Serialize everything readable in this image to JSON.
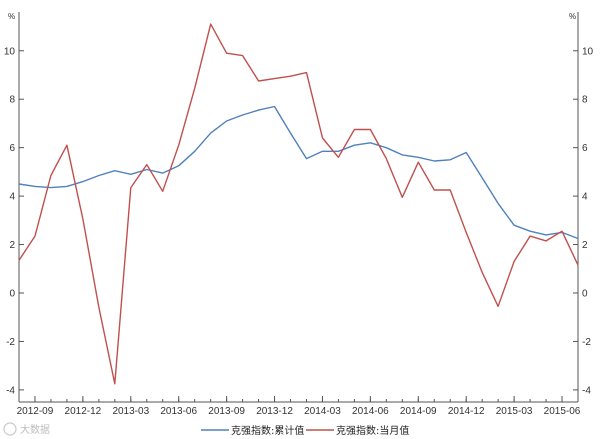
{
  "chart_data": {
    "type": "line",
    "title": "",
    "xlabel": "",
    "ylabel": "",
    "unit_left": "%",
    "unit_right": "%",
    "ylim": [
      -4.5,
      11.6
    ],
    "yticks": [
      -4,
      -2,
      0,
      2,
      4,
      6,
      8,
      10
    ],
    "x_tick_labels": [
      "2012-09",
      "2012-12",
      "2013-03",
      "2013-06",
      "2013-09",
      "2013-12",
      "2014-03",
      "2014-06",
      "2014-09",
      "2014-12",
      "2015-03",
      "2015-06"
    ],
    "x": [
      "2012-08",
      "2012-09",
      "2012-10",
      "2012-11",
      "2012-12",
      "2013-01",
      "2013-02",
      "2013-03",
      "2013-04",
      "2013-05",
      "2013-06",
      "2013-07",
      "2013-08",
      "2013-09",
      "2013-10",
      "2013-11",
      "2013-12",
      "2014-01",
      "2014-02",
      "2014-03",
      "2014-04",
      "2014-05",
      "2014-06",
      "2014-07",
      "2014-08",
      "2014-09",
      "2014-10",
      "2014-11",
      "2014-12",
      "2015-01",
      "2015-02",
      "2015-03",
      "2015-04",
      "2015-05",
      "2015-06",
      "2015-07"
    ],
    "series": [
      {
        "name": "克强指数:累计值",
        "color": "#4f81bd",
        "values": [
          4.5,
          4.4,
          4.35,
          4.4,
          4.6,
          4.85,
          5.05,
          4.9,
          5.1,
          4.95,
          5.25,
          5.85,
          6.6,
          7.1,
          7.35,
          7.55,
          7.7,
          6.6,
          5.55,
          5.85,
          5.85,
          6.1,
          6.2,
          6.0,
          5.7,
          5.6,
          5.45,
          5.5,
          5.8,
          4.75,
          3.7,
          2.8,
          2.55,
          2.4,
          2.5,
          2.25
        ]
      },
      {
        "name": "克强指数:当月值",
        "color": "#c0504d",
        "values": [
          1.35,
          2.35,
          4.85,
          6.1,
          3.05,
          -0.6,
          -3.75,
          4.35,
          5.3,
          4.2,
          6.1,
          8.45,
          11.1,
          9.9,
          9.8,
          8.75,
          8.85,
          8.95,
          9.1,
          6.4,
          5.6,
          6.75,
          6.75,
          5.55,
          3.95,
          5.4,
          4.25,
          4.25,
          2.5,
          0.85,
          -0.55,
          1.3,
          2.35,
          2.15,
          2.55,
          1.15
        ]
      }
    ],
    "grid": false,
    "legend_position": "bottom-center"
  },
  "watermark": "大数据",
  "colors": {
    "axis": "#555555",
    "background": "#ffffff"
  }
}
